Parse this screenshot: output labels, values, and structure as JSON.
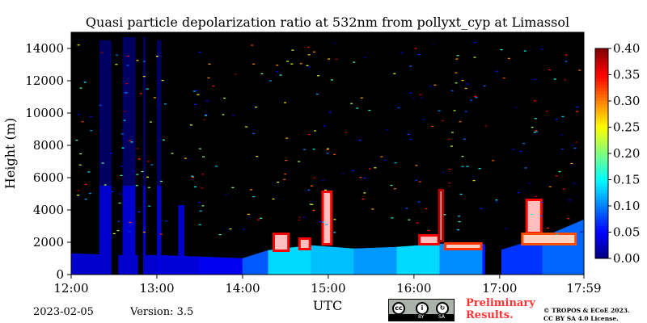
{
  "chart_data": {
    "type": "heatmap",
    "title": "Quasi particle depolarization ratio at 532nm from pollyxt_cyp at Limassol",
    "xlabel": "UTC",
    "ylabel": "Height (m)",
    "x_range_hours": [
      12.0,
      17.983
    ],
    "x_ticks": [
      12,
      13,
      14,
      15,
      16,
      17,
      17.983
    ],
    "x_tick_labels": [
      "12:00",
      "13:00",
      "14:00",
      "15:00",
      "16:00",
      "17:00",
      "17:59"
    ],
    "ylim": [
      0,
      15000
    ],
    "y_ticks": [
      0,
      2000,
      4000,
      6000,
      8000,
      10000,
      12000,
      14000
    ],
    "y_tick_labels": [
      "0",
      "2000",
      "4000",
      "6000",
      "8000",
      "10000",
      "12000",
      "14000"
    ],
    "colorbar": {
      "range": [
        0.0,
        0.4
      ],
      "ticks": [
        0.0,
        0.05,
        0.1,
        0.15,
        0.2,
        0.25,
        0.3,
        0.35,
        0.4
      ],
      "tick_labels": [
        "0.00",
        "0.05",
        "0.10",
        "0.15",
        "0.20",
        "0.25",
        "0.30",
        "0.35",
        "0.40"
      ],
      "colormap": "jet"
    },
    "background_color": "#000000",
    "boundary_layer": [
      {
        "t": 12.0,
        "top": 1300,
        "value": 0.03
      },
      {
        "t": 12.5,
        "top": 1200,
        "value": 0.03
      },
      {
        "t": 13.0,
        "top": 1200,
        "value": 0.03
      },
      {
        "t": 13.5,
        "top": 1100,
        "value": 0.04
      },
      {
        "t": 14.0,
        "top": 1000,
        "value": 0.05
      },
      {
        "t": 14.3,
        "top": 1500,
        "value": 0.12
      },
      {
        "t": 14.8,
        "top": 1800,
        "value": 0.15
      },
      {
        "t": 15.3,
        "top": 1600,
        "value": 0.1
      },
      {
        "t": 15.8,
        "top": 1700,
        "value": 0.12
      },
      {
        "t": 16.3,
        "top": 1900,
        "value": 0.15
      },
      {
        "t": 16.8,
        "top": 1900,
        "value": 0.06
      },
      {
        "t": 17.0,
        "top": 1500,
        "value": 0.06
      },
      {
        "t": 17.5,
        "top": 2300,
        "value": 0.08
      },
      {
        "t": 17.983,
        "top": 3400,
        "value": 0.1
      }
    ],
    "aerosol_features": [
      {
        "t0": 14.35,
        "t1": 14.55,
        "z0": 1400,
        "z1": 2600,
        "value": 0.35
      },
      {
        "t0": 14.65,
        "t1": 14.8,
        "z0": 1500,
        "z1": 2300,
        "value": 0.35
      },
      {
        "t0": 14.92,
        "t1": 15.05,
        "z0": 1800,
        "z1": 5200,
        "value": 0.35
      },
      {
        "t0": 16.05,
        "t1": 16.3,
        "z0": 1800,
        "z1": 2500,
        "value": 0.35
      },
      {
        "t0": 16.28,
        "t1": 16.35,
        "z0": 2000,
        "z1": 5300,
        "value": 0.38
      },
      {
        "t0": 16.35,
        "t1": 16.8,
        "z0": 1500,
        "z1": 2000,
        "value": 0.33
      },
      {
        "t0": 17.3,
        "t1": 17.5,
        "z0": 2500,
        "z1": 4700,
        "value": 0.35
      },
      {
        "t0": 17.25,
        "t1": 17.9,
        "z0": 1800,
        "z1": 2600,
        "value": 0.32
      }
    ],
    "cloud_columns": [
      {
        "t0": 12.33,
        "t1": 12.48,
        "z1": 14500
      },
      {
        "t0": 12.6,
        "t1": 12.75,
        "z1": 14700
      },
      {
        "t0": 12.78,
        "t1": 12.87,
        "z1": 14700
      },
      {
        "t0": 13.0,
        "t1": 13.05,
        "z1": 14500
      },
      {
        "t0": 13.25,
        "t1": 13.32,
        "z1": 4300
      }
    ],
    "no_data_intervals": [
      {
        "t0": 12.47,
        "t1": 12.55
      },
      {
        "t0": 12.78,
        "t1": 12.84
      },
      {
        "t0": 16.83,
        "t1": 17.02
      }
    ]
  },
  "footer": {
    "date": "2023-02-05",
    "version": "Version: 3.5",
    "preliminary": [
      "Preliminary",
      "Results."
    ],
    "copyright": [
      "© TROPOS & ECoE 2023.",
      "CC BY SA 4.0 License."
    ],
    "license_labels": [
      "BY",
      "SA"
    ]
  }
}
